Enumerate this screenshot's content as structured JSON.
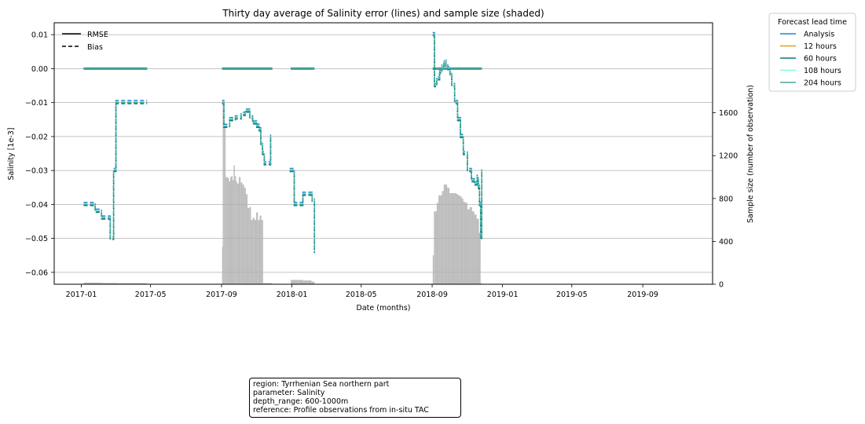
{
  "chart_data": {
    "type": "line",
    "title": "Thirty day average of Salinity error (lines) and sample size (shaded)",
    "xlabel": "Date (months)",
    "ylabel": "Salinity [1e-3]",
    "y2label": "Sample size (number of observation)",
    "xlim": [
      "2016-11-15",
      "2019-12-31"
    ],
    "ylim": [
      -0.0635,
      0.0135
    ],
    "y2lim": [
      0,
      2440
    ],
    "x_ticks": [
      "2017-01",
      "2017-05",
      "2017-09",
      "2018-01",
      "2018-05",
      "2018-09",
      "2019-01",
      "2019-05",
      "2019-09"
    ],
    "y_ticks": [
      0.01,
      0.0,
      -0.01,
      -0.02,
      -0.03,
      -0.04,
      -0.05,
      -0.06
    ],
    "y_tick_labels": [
      "0.01",
      "0.00",
      "−0.01",
      "−0.02",
      "−0.03",
      "−0.04",
      "−0.05",
      "−0.06"
    ],
    "y2_ticks": [
      0,
      400,
      800,
      1200,
      1600
    ],
    "y2_tick_labels": [
      "0",
      "400",
      "800",
      "1200",
      "1600"
    ],
    "grid": "horizontal",
    "style_legend": {
      "placement": "top-left",
      "entries": [
        {
          "label": "RMSE",
          "dash": "solid"
        },
        {
          "label": "Bias",
          "dash": "dashed"
        }
      ]
    },
    "legend": {
      "title": "Forecast lead time",
      "placement": "outside-right-top",
      "entries": [
        "Analysis",
        "12 hours",
        "60 hours",
        "108 hours",
        "204 hours"
      ]
    },
    "series_colors": {
      "Analysis": "#1f85d9",
      "12 hours": "#e0a010",
      "60 hours": "#087878",
      "108 hours": "#7fffd4",
      "204 hours": "#48a898"
    },
    "rmse": [
      {
        "x": [
          "2017-01-05",
          "2017-04-25"
        ],
        "y": [
          0.0,
          0.0
        ]
      },
      {
        "x": [
          "2017-09-02",
          "2017-11-28"
        ],
        "y": [
          0.0,
          0.0
        ]
      },
      {
        "x": [
          "2017-12-30",
          "2018-02-09"
        ],
        "y": [
          0.0,
          0.0
        ]
      },
      {
        "x": [
          "2018-09-02",
          "2018-11-26"
        ],
        "y": [
          0.0,
          0.0
        ]
      }
    ],
    "bias": {
      "x": [
        "2017-01-05",
        "2017-01-20",
        "2017-01-25",
        "2017-02-05",
        "2017-02-20",
        "2017-02-26",
        "2017-03-02",
        "2017-03-05",
        "2017-04-25",
        null,
        "2017-09-02",
        "2017-09-05",
        "2017-09-15",
        "2017-09-25",
        "2017-10-05",
        "2017-10-12",
        "2017-10-20",
        "2017-10-25",
        "2017-11-01",
        "2017-11-05",
        "2017-11-08",
        "2017-11-11",
        "2017-11-14",
        "2017-11-16",
        "2017-11-18",
        "2017-11-25",
        "2017-11-28",
        null,
        "2017-12-28",
        "2018-01-02",
        "2018-01-05",
        "2018-01-12",
        "2018-01-20",
        "2018-02-03",
        "2018-02-05",
        "2018-02-09",
        null,
        "2018-09-02",
        "2018-09-05",
        "2018-09-09",
        "2018-09-14",
        "2018-09-18",
        "2018-09-22",
        "2018-09-25",
        "2018-09-28",
        "2018-10-02",
        "2018-10-05",
        "2018-10-10",
        "2018-10-15",
        "2018-10-20",
        "2018-10-25",
        "2018-11-01",
        "2018-11-08",
        "2018-11-13",
        "2018-11-18",
        "2018-11-20",
        "2018-11-22",
        "2018-11-24",
        "2018-11-26"
      ],
      "y": [
        -0.04,
        -0.04,
        -0.042,
        -0.044,
        -0.05,
        -0.03,
        -0.01,
        -0.01,
        -0.01,
        null,
        -0.01,
        -0.017,
        -0.015,
        -0.0145,
        -0.0135,
        -0.0125,
        -0.0145,
        -0.016,
        -0.017,
        -0.018,
        -0.022,
        -0.025,
        -0.028,
        -0.028,
        -0.028,
        -0.02,
        -0.02,
        null,
        -0.03,
        -0.03,
        -0.04,
        -0.04,
        -0.037,
        -0.037,
        -0.039,
        -0.054,
        null,
        0.01,
        -0.005,
        -0.003,
        -0.001,
        0.001,
        0.002,
        0.001,
        0.0,
        -0.002,
        -0.005,
        -0.01,
        -0.015,
        -0.02,
        -0.025,
        -0.03,
        -0.033,
        -0.034,
        -0.032,
        -0.035,
        -0.04,
        -0.05,
        -0.03
      ]
    },
    "sample_size": {
      "x": [
        "2017-01-05",
        "2017-01-20",
        "2017-02-05",
        "2017-02-20",
        "2017-03-05",
        "2017-03-20",
        "2017-04-05",
        "2017-04-25",
        null,
        "2017-09-02",
        "2017-09-03",
        "2017-09-04",
        "2017-09-06",
        "2017-09-08",
        "2017-09-10",
        "2017-09-12",
        "2017-09-14",
        "2017-09-16",
        "2017-09-18",
        "2017-09-20",
        "2017-09-22",
        "2017-09-24",
        "2017-09-26",
        "2017-09-28",
        "2017-10-01",
        "2017-10-04",
        "2017-10-07",
        "2017-10-10",
        "2017-10-13",
        "2017-10-16",
        "2017-10-19",
        "2017-10-22",
        "2017-10-25",
        "2017-10-28",
        "2017-10-31",
        "2017-11-03",
        "2017-11-06",
        "2017-11-09",
        "2017-11-12",
        "2017-11-15",
        "2017-11-18",
        "2017-11-28",
        null,
        "2017-12-30",
        "2018-01-05",
        "2018-01-12",
        "2018-01-20",
        "2018-01-28",
        "2018-02-04",
        "2018-02-09",
        null,
        "2018-09-02",
        "2018-09-04",
        "2018-09-06",
        "2018-09-09",
        "2018-09-12",
        "2018-09-15",
        "2018-09-18",
        "2018-09-21",
        "2018-09-24",
        "2018-09-27",
        "2018-10-01",
        "2018-10-04",
        "2018-10-07",
        "2018-10-10",
        "2018-10-13",
        "2018-10-16",
        "2018-10-19",
        "2018-10-22",
        "2018-10-25",
        "2018-10-28",
        "2018-11-01",
        "2018-11-05",
        "2018-11-09",
        "2018-11-13",
        "2018-11-17",
        "2018-11-21",
        "2018-11-24",
        "2018-11-26"
      ],
      "y": [
        15,
        15,
        12,
        12,
        10,
        10,
        10,
        10,
        null,
        350,
        1700,
        1620,
        1480,
        1000,
        1000,
        990,
        960,
        1000,
        1010,
        970,
        1110,
        1010,
        960,
        940,
        1000,
        950,
        930,
        900,
        840,
        710,
        720,
        600,
        620,
        600,
        670,
        600,
        640,
        600,
        10,
        10,
        10,
        10,
        null,
        40,
        40,
        40,
        35,
        35,
        25,
        20,
        null,
        270,
        680,
        680,
        760,
        830,
        830,
        870,
        930,
        930,
        900,
        850,
        850,
        850,
        850,
        840,
        830,
        820,
        800,
        770,
        760,
        700,
        720,
        680,
        650,
        610,
        480,
        10,
        10
      ]
    }
  },
  "info_box": {
    "region": "region: Tyrrhenian Sea northern part",
    "parameter": "parameter: Salinity",
    "depth_range": "depth_range: 600-1000m",
    "reference": "reference: Profile observations from in-situ TAC"
  }
}
